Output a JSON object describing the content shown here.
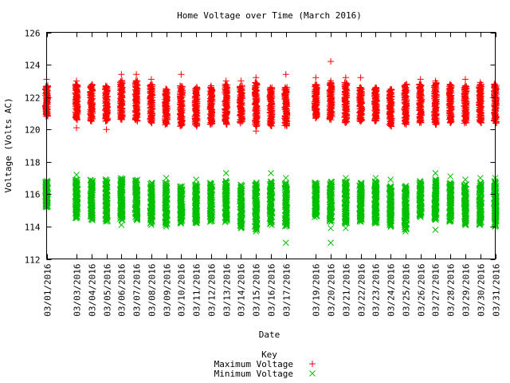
{
  "chart_data": {
    "type": "scatter",
    "title": "Home Voltage over Time (March 2016)",
    "xlabel": "Date",
    "ylabel": "Voltage (Volts AC)",
    "ylim": [
      112,
      126
    ],
    "yticks": [
      112,
      114,
      116,
      118,
      120,
      122,
      124,
      126
    ],
    "grid": false,
    "legend_position": "bottom-center",
    "legend_title": "Key",
    "x": [
      "03/01/2016",
      "03/03/2016",
      "03/04/2016",
      "03/05/2016",
      "03/06/2016",
      "03/07/2016",
      "03/08/2016",
      "03/09/2016",
      "03/10/2016",
      "03/11/2016",
      "03/12/2016",
      "03/13/2016",
      "03/14/2016",
      "03/15/2016",
      "03/16/2016",
      "03/17/2016",
      "03/19/2016",
      "03/20/2016",
      "03/21/2016",
      "03/22/2016",
      "03/23/2016",
      "03/24/2016",
      "03/25/2016",
      "03/26/2016",
      "03/27/2016",
      "03/28/2016",
      "03/29/2016",
      "03/30/2016",
      "03/31/2016"
    ],
    "series": [
      {
        "name": "Maximum Voltage",
        "marker": "plus",
        "color": "#ff0000",
        "range_low": [
          120.8,
          120.6,
          120.5,
          120.5,
          120.6,
          120.5,
          120.4,
          120.3,
          120.2,
          120.2,
          120.3,
          120.3,
          120.4,
          120.2,
          120.2,
          120.2,
          120.7,
          120.6,
          120.4,
          120.5,
          120.5,
          120.2,
          120.3,
          120.4,
          120.3,
          120.4,
          120.4,
          120.4,
          120.4
        ],
        "range_high": [
          122.7,
          122.8,
          122.8,
          122.7,
          123.0,
          123.0,
          122.8,
          122.5,
          122.7,
          122.6,
          122.6,
          122.8,
          122.7,
          122.9,
          122.6,
          122.6,
          122.8,
          122.9,
          122.9,
          122.6,
          122.6,
          122.5,
          122.8,
          122.8,
          122.9,
          122.8,
          122.7,
          122.8,
          122.8
        ],
        "outliers": [
          [
            0,
            123.1
          ],
          [
            1,
            123.0
          ],
          [
            1,
            120.1
          ],
          [
            3,
            120.0
          ],
          [
            4,
            123.4
          ],
          [
            5,
            123.4
          ],
          [
            6,
            123.1
          ],
          [
            8,
            123.4
          ],
          [
            10,
            122.7
          ],
          [
            11,
            123.0
          ],
          [
            12,
            123.0
          ],
          [
            13,
            123.2
          ],
          [
            13,
            119.9
          ],
          [
            15,
            123.4
          ],
          [
            16,
            123.2
          ],
          [
            17,
            124.2
          ],
          [
            17,
            123.0
          ],
          [
            18,
            123.2
          ],
          [
            19,
            123.2
          ],
          [
            23,
            123.1
          ],
          [
            24,
            123.0
          ],
          [
            26,
            123.1
          ],
          [
            27,
            122.9
          ]
        ]
      },
      {
        "name": "Minimum Voltage",
        "marker": "x",
        "color": "#00c000",
        "range_low": [
          115.2,
          114.5,
          114.4,
          114.3,
          114.4,
          114.4,
          114.2,
          114.1,
          114.2,
          114.2,
          114.3,
          114.3,
          113.9,
          113.8,
          114.1,
          114.0,
          114.6,
          114.3,
          114.2,
          114.3,
          114.2,
          114.0,
          113.8,
          114.6,
          114.4,
          114.3,
          114.1,
          114.1,
          114.0
        ],
        "range_high": [
          116.8,
          116.9,
          116.9,
          116.9,
          117.0,
          116.9,
          116.7,
          116.7,
          116.5,
          116.6,
          116.7,
          116.8,
          116.6,
          116.7,
          116.8,
          116.7,
          116.7,
          116.8,
          116.8,
          116.7,
          116.8,
          116.5,
          116.5,
          116.8,
          116.9,
          116.7,
          116.6,
          116.7,
          116.8
        ],
        "outliers": [
          [
            1,
            117.2
          ],
          [
            4,
            114.1
          ],
          [
            6,
            114.1
          ],
          [
            7,
            117.0
          ],
          [
            7,
            114.0
          ],
          [
            9,
            116.9
          ],
          [
            11,
            117.3
          ],
          [
            13,
            113.7
          ],
          [
            14,
            117.3
          ],
          [
            15,
            117.0
          ],
          [
            15,
            113.0
          ],
          [
            17,
            113.0
          ],
          [
            17,
            113.9
          ],
          [
            18,
            117.0
          ],
          [
            18,
            113.9
          ],
          [
            20,
            117.0
          ],
          [
            21,
            116.9
          ],
          [
            22,
            113.7
          ],
          [
            24,
            117.3
          ],
          [
            24,
            113.8
          ],
          [
            25,
            117.1
          ],
          [
            26,
            116.9
          ],
          [
            27,
            117.0
          ],
          [
            28,
            117.0
          ]
        ]
      }
    ]
  }
}
